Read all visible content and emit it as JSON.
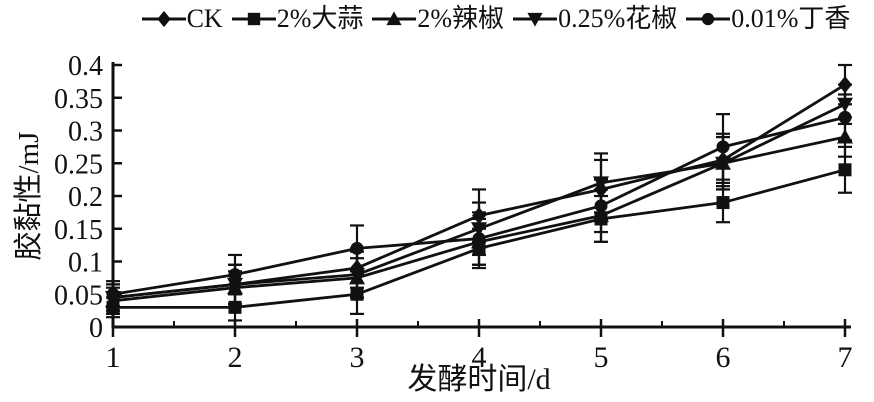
{
  "chart_data": {
    "type": "line",
    "title": "",
    "xlabel": "发酵时间/d",
    "ylabel": "胶黏性/mJ",
    "x": [
      1,
      2,
      3,
      4,
      5,
      6,
      7
    ],
    "xlim": [
      1,
      7
    ],
    "ylim": [
      0,
      0.4
    ],
    "xticks": [
      "1",
      "2",
      "3",
      "4",
      "5",
      "6",
      "7"
    ],
    "yticks": [
      "0",
      "0.05",
      "0.1",
      "0.15",
      "0.2",
      "0.25",
      "0.3",
      "0.35",
      "0.4"
    ],
    "grid": false,
    "legend_position": "top",
    "color": "#111111",
    "series": [
      {
        "name": "CK",
        "marker": "diamond",
        "values": [
          0.045,
          0.065,
          0.09,
          0.17,
          0.21,
          0.255,
          0.37
        ],
        "errors": [
          0.02,
          0.03,
          0.03,
          0.04,
          0.045,
          0.04,
          0.03
        ]
      },
      {
        "name": "2%大蒜",
        "marker": "square",
        "values": [
          0.03,
          0.03,
          0.05,
          0.12,
          0.165,
          0.19,
          0.24
        ],
        "errors": [
          0.015,
          0.02,
          0.03,
          0.03,
          0.035,
          0.03,
          0.035
        ]
      },
      {
        "name": "2%辣椒",
        "marker": "triangle-up",
        "values": [
          0.04,
          0.06,
          0.075,
          0.13,
          0.17,
          0.25,
          0.29
        ],
        "errors": [
          0.02,
          0.025,
          0.03,
          0.035,
          0.04,
          0.04,
          0.03
        ]
      },
      {
        "name": "0.25%花椒",
        "marker": "triangle-down",
        "values": [
          0.045,
          0.065,
          0.08,
          0.15,
          0.22,
          0.25,
          0.34
        ],
        "errors": [
          0.02,
          0.03,
          0.035,
          0.04,
          0.045,
          0.04,
          0.03
        ]
      },
      {
        "name": "0.01%丁香",
        "marker": "circle",
        "values": [
          0.05,
          0.08,
          0.12,
          0.135,
          0.185,
          0.275,
          0.32
        ],
        "errors": [
          0.02,
          0.03,
          0.035,
          0.04,
          0.04,
          0.05,
          0.035
        ]
      }
    ]
  }
}
